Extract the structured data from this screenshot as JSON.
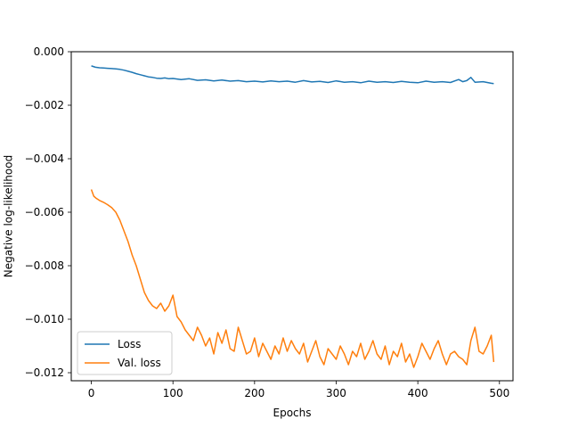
{
  "chart_data": {
    "type": "line",
    "xlabel": "Epochs",
    "ylabel": "Negative log-likelihood",
    "xlim": [
      -24.6,
      516.6
    ],
    "ylim": [
      -0.0123,
      0.0
    ],
    "xticks": [
      0,
      100,
      200,
      300,
      400,
      500
    ],
    "xtick_labels": [
      "0",
      "100",
      "200",
      "300",
      "400",
      "500"
    ],
    "yticks": [
      0.0,
      -0.002,
      -0.004,
      -0.006,
      -0.008,
      -0.01,
      -0.012
    ],
    "ytick_labels": [
      "0.000",
      "−0.002",
      "−0.004",
      "−0.006",
      "−0.008",
      "−0.010",
      "−0.012"
    ],
    "grid": false,
    "legend_position": "lower-left",
    "series": [
      {
        "name": "Loss",
        "color": "#1f77b4",
        "x": [
          0,
          5,
          10,
          15,
          20,
          25,
          30,
          35,
          40,
          45,
          50,
          55,
          60,
          65,
          70,
          75,
          80,
          85,
          90,
          95,
          100,
          110,
          120,
          130,
          140,
          150,
          160,
          170,
          180,
          190,
          200,
          210,
          220,
          230,
          240,
          250,
          260,
          270,
          280,
          290,
          300,
          310,
          320,
          330,
          340,
          350,
          360,
          370,
          380,
          390,
          400,
          410,
          420,
          430,
          440,
          450,
          455,
          460,
          465,
          470,
          480,
          490,
          493
        ],
        "y": [
          -0.00053,
          -0.00058,
          -0.0006,
          -0.00061,
          -0.00062,
          -0.00063,
          -0.00064,
          -0.00066,
          -0.00069,
          -0.00073,
          -0.00077,
          -0.00082,
          -0.00086,
          -0.0009,
          -0.00094,
          -0.00096,
          -0.00099,
          -0.001,
          -0.00098,
          -0.00101,
          -0.001,
          -0.00104,
          -0.00101,
          -0.00107,
          -0.00105,
          -0.00109,
          -0.00106,
          -0.0011,
          -0.00108,
          -0.00112,
          -0.0011,
          -0.00113,
          -0.00109,
          -0.00112,
          -0.0011,
          -0.00114,
          -0.00108,
          -0.00113,
          -0.00111,
          -0.00115,
          -0.00109,
          -0.00114,
          -0.00112,
          -0.00116,
          -0.0011,
          -0.00114,
          -0.00112,
          -0.00115,
          -0.00111,
          -0.00114,
          -0.00116,
          -0.0011,
          -0.00114,
          -0.00112,
          -0.00115,
          -0.00104,
          -0.00112,
          -0.00108,
          -0.00096,
          -0.00114,
          -0.00112,
          -0.00118,
          -0.00119
        ]
      },
      {
        "name": "Val. loss",
        "color": "#ff7f0e",
        "x": [
          0,
          3,
          6,
          10,
          15,
          20,
          25,
          30,
          35,
          40,
          45,
          50,
          55,
          60,
          65,
          70,
          75,
          80,
          85,
          90,
          95,
          100,
          105,
          110,
          115,
          120,
          125,
          130,
          135,
          140,
          145,
          150,
          155,
          160,
          165,
          170,
          175,
          180,
          185,
          190,
          195,
          200,
          205,
          210,
          215,
          220,
          225,
          230,
          235,
          240,
          245,
          250,
          255,
          260,
          265,
          270,
          275,
          280,
          285,
          290,
          295,
          300,
          305,
          310,
          315,
          320,
          325,
          330,
          335,
          340,
          345,
          350,
          355,
          360,
          365,
          370,
          375,
          380,
          385,
          390,
          395,
          400,
          405,
          410,
          415,
          420,
          425,
          430,
          435,
          440,
          445,
          450,
          455,
          460,
          465,
          470,
          475,
          480,
          485,
          490,
          493
        ],
        "y": [
          -0.00515,
          -0.0054,
          -0.00548,
          -0.00556,
          -0.00563,
          -0.00572,
          -0.00583,
          -0.006,
          -0.0063,
          -0.0067,
          -0.0071,
          -0.0076,
          -0.008,
          -0.0085,
          -0.009,
          -0.0093,
          -0.0095,
          -0.0096,
          -0.0094,
          -0.0097,
          -0.0095,
          -0.0091,
          -0.0099,
          -0.0101,
          -0.0104,
          -0.0106,
          -0.0108,
          -0.0103,
          -0.0106,
          -0.011,
          -0.0107,
          -0.0113,
          -0.0105,
          -0.0109,
          -0.0104,
          -0.0111,
          -0.0112,
          -0.0103,
          -0.0108,
          -0.0113,
          -0.0112,
          -0.0107,
          -0.0114,
          -0.0109,
          -0.0112,
          -0.0115,
          -0.011,
          -0.0113,
          -0.0107,
          -0.0112,
          -0.0108,
          -0.0111,
          -0.0113,
          -0.0109,
          -0.0116,
          -0.0112,
          -0.0108,
          -0.0114,
          -0.0117,
          -0.0111,
          -0.0113,
          -0.0115,
          -0.011,
          -0.0113,
          -0.0117,
          -0.0112,
          -0.0114,
          -0.0109,
          -0.0115,
          -0.0112,
          -0.0108,
          -0.0113,
          -0.0115,
          -0.011,
          -0.0117,
          -0.0112,
          -0.0114,
          -0.0109,
          -0.0116,
          -0.0113,
          -0.0118,
          -0.0114,
          -0.0109,
          -0.0112,
          -0.0115,
          -0.0111,
          -0.0108,
          -0.0113,
          -0.0117,
          -0.0113,
          -0.0112,
          -0.0114,
          -0.0115,
          -0.0117,
          -0.0108,
          -0.0103,
          -0.0112,
          -0.0113,
          -0.011,
          -0.0106,
          -0.0116
        ]
      }
    ]
  }
}
